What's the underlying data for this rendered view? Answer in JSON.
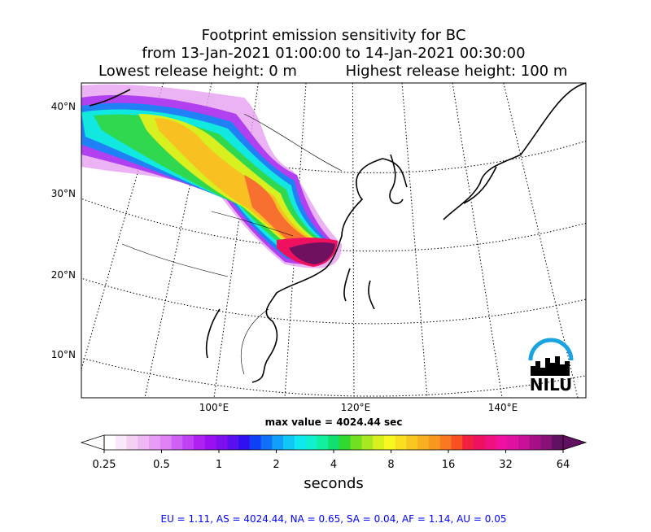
{
  "header": {
    "title_lines": [
      "Footprint emission sensitivity for BC",
      "from 13-Jan-2021 01:00:00 to 14-Jan-2021 00:30:00"
    ],
    "release_low": "Lowest release height: 0 m",
    "release_high": "Highest release height: 100 m"
  },
  "map": {
    "lat_labels": [
      "40°N",
      "30°N",
      "20°N",
      "10°N"
    ],
    "lon_labels": [
      "100°E",
      "120°E",
      "140°E"
    ],
    "max_value_text": "max value = 4024.44 sec",
    "logo": "NILU"
  },
  "colorbar": {
    "scale": "log",
    "lim": [
      0.25,
      64
    ],
    "ticks": [
      0.25,
      0.5,
      1,
      2,
      4,
      8,
      16,
      32,
      64
    ],
    "label": "seconds",
    "colors": [
      "#ffffff",
      "#fbe8fb",
      "#f5d0f5",
      "#efb8f5",
      "#e89cf5",
      "#df80f5",
      "#d060f5",
      "#c040f5",
      "#b020f0",
      "#9a10f0",
      "#7e10f0",
      "#5a10f0",
      "#3010f0",
      "#1040f5",
      "#1070f5",
      "#10a0f8",
      "#10c8f8",
      "#10e8f0",
      "#10f0d0",
      "#10f0a0",
      "#10e070",
      "#30d830",
      "#70e020",
      "#a8e820",
      "#d8f020",
      "#f8f820",
      "#f8e020",
      "#f8c820",
      "#f8b020",
      "#f89820",
      "#f87820",
      "#f85020",
      "#f02040",
      "#f01060",
      "#f01080",
      "#f010a0",
      "#e010a0",
      "#c81098",
      "#a81088",
      "#881078",
      "#601060"
    ]
  },
  "footer": "EU = 1.11,  AS = 4024.44,  NA = 0.65,  SA = 0.04,  AF = 1.14,  AU = 0.05"
}
